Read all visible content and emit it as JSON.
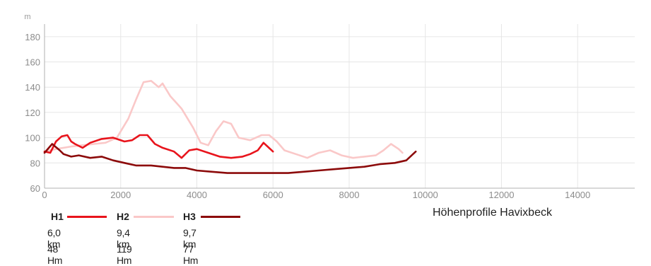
{
  "chart_data": {
    "type": "line",
    "caption": "Höhenprofile Havixbeck",
    "y_unit": "m",
    "xlim": [
      0,
      15500
    ],
    "ylim": [
      60,
      190
    ],
    "x_ticks": [
      0,
      2000,
      4000,
      6000,
      8000,
      10000,
      12000,
      14000
    ],
    "y_ticks": [
      60,
      80,
      100,
      120,
      140,
      160,
      180
    ],
    "grid": true,
    "series": [
      {
        "name": "H1",
        "color": "#e8141c",
        "distance": "6,0 km",
        "ascent": "48 Hm",
        "x": [
          0,
          150,
          300,
          450,
          600,
          700,
          800,
          1000,
          1200,
          1500,
          1800,
          2100,
          2300,
          2500,
          2700,
          2900,
          3100,
          3400,
          3600,
          3800,
          4000,
          4300,
          4600,
          4900,
          5200,
          5400,
          5600,
          5750,
          6000
        ],
        "y": [
          89,
          88,
          97,
          101,
          102,
          97,
          95,
          92,
          96,
          99,
          100,
          97,
          98,
          102,
          102,
          95,
          92,
          89,
          84,
          90,
          91,
          88,
          85,
          84,
          85,
          87,
          90,
          96,
          89
        ]
      },
      {
        "name": "H2",
        "color": "#fac8c8",
        "distance": "9,4 km",
        "ascent": "119 Hm",
        "x": [
          0,
          300,
          700,
          1000,
          1300,
          1600,
          1900,
          2200,
          2400,
          2600,
          2800,
          3000,
          3100,
          3300,
          3600,
          3900,
          4100,
          4300,
          4500,
          4700,
          4900,
          5100,
          5400,
          5700,
          5900,
          6100,
          6300,
          6600,
          6900,
          7200,
          7500,
          7800,
          8100,
          8400,
          8700,
          8900,
          9100,
          9300,
          9400
        ],
        "y": [
          89,
          91,
          93,
          94,
          95,
          96,
          100,
          115,
          130,
          144,
          145,
          140,
          143,
          133,
          123,
          108,
          96,
          94,
          105,
          113,
          111,
          100,
          98,
          102,
          102,
          97,
          90,
          87,
          84,
          88,
          90,
          86,
          84,
          85,
          86,
          90,
          95,
          91,
          88
        ]
      },
      {
        "name": "H3",
        "color": "#8c0a0a",
        "distance": "9,7 km",
        "ascent": "77 Hm",
        "x": [
          0,
          200,
          400,
          500,
          700,
          900,
          1200,
          1500,
          1800,
          2100,
          2400,
          2800,
          3100,
          3400,
          3700,
          4000,
          4400,
          4800,
          5200,
          5600,
          6000,
          6400,
          6800,
          7200,
          7600,
          8000,
          8400,
          8800,
          9200,
          9500,
          9750
        ],
        "y": [
          88,
          95,
          90,
          87,
          85,
          86,
          84,
          85,
          82,
          80,
          78,
          78,
          77,
          76,
          76,
          74,
          73,
          72,
          72,
          72,
          72,
          72,
          73,
          74,
          75,
          76,
          77,
          79,
          80,
          82,
          89
        ]
      }
    ]
  }
}
